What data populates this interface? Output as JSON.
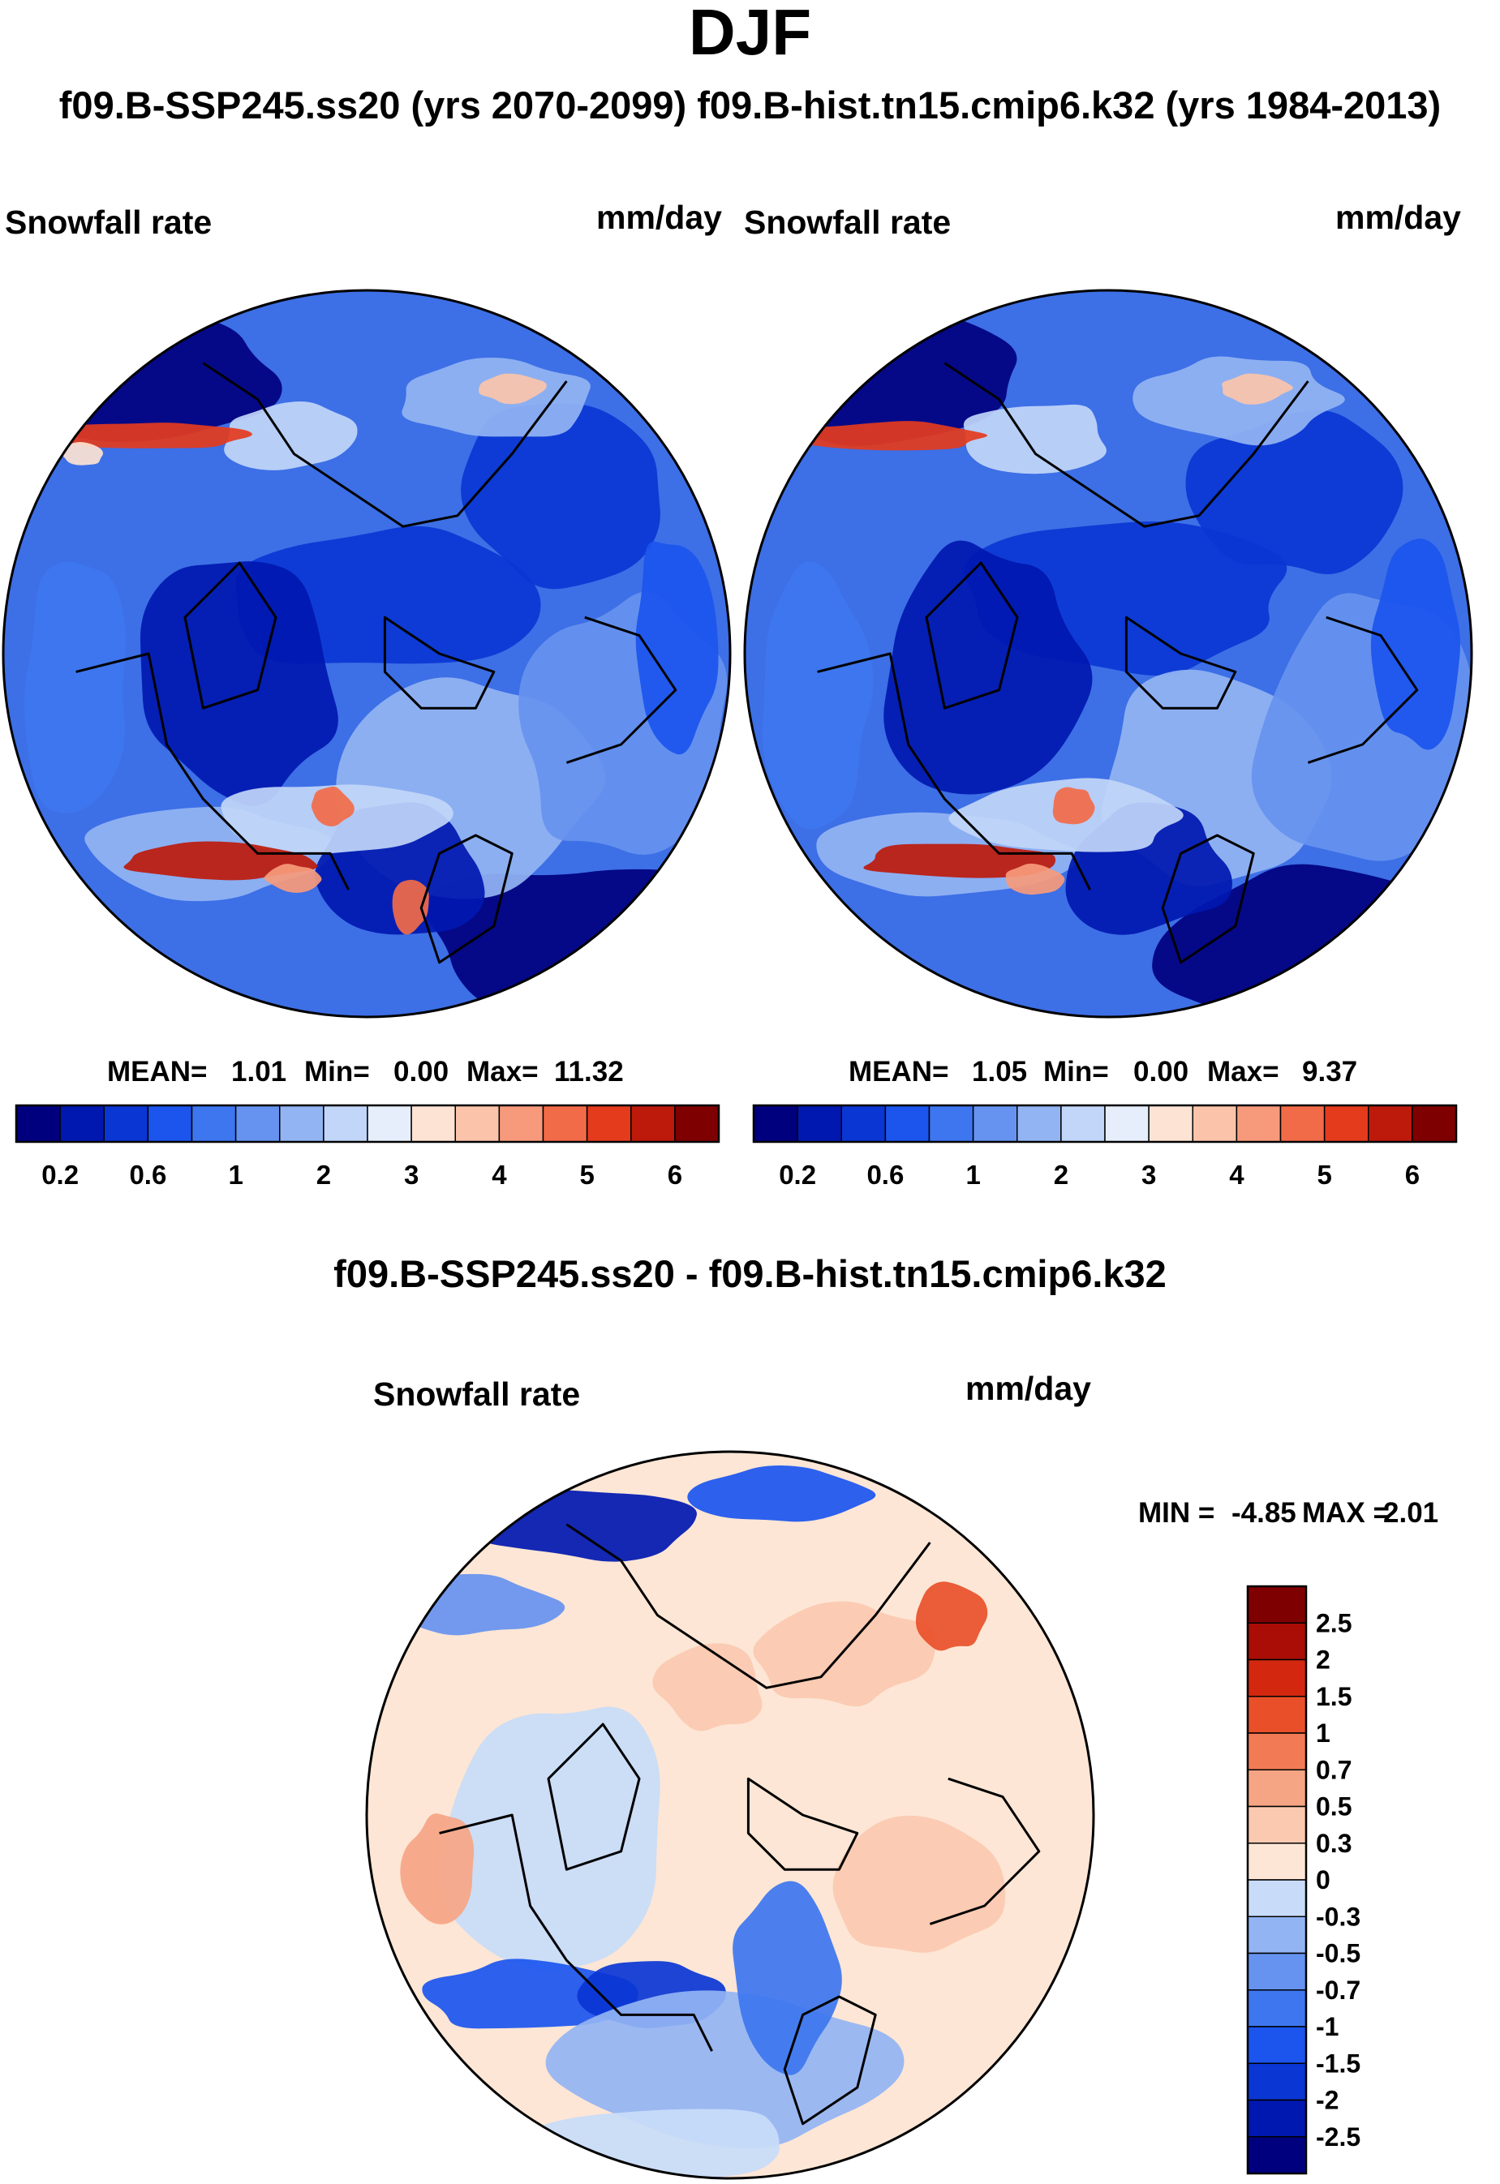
{
  "season": "DJF",
  "subtitle": "f09.B-SSP245.ss20 (yrs 2070-2099)  f09.B-hist.tn15.cmip6.k32 (yrs 1984-2013)",
  "diff_title": "f09.B-SSP245.ss20 - f09.B-hist.tn15.cmip6.k32",
  "chart_data": [
    {
      "type": "heatmap",
      "projection": "north-polar-stereographic",
      "case": "f09.B-SSP245.ss20",
      "years": "2070-2099",
      "variable": "Snowfall rate",
      "units": "mm/day",
      "stats": {
        "mean_label": "MEAN=",
        "mean": "1.01",
        "min_label": "Min=",
        "min": "0.00",
        "max_label": "Max=",
        "max": "11.32"
      },
      "levels": [
        0.2,
        0.4,
        0.6,
        0.8,
        1,
        1.5,
        2,
        2.5,
        3,
        3.5,
        4,
        4.5,
        5,
        5.5,
        6
      ],
      "colorbar_labels": [
        "0.2",
        "0.6",
        "1",
        "2",
        "3",
        "4",
        "5",
        "6"
      ]
    },
    {
      "type": "heatmap",
      "projection": "north-polar-stereographic",
      "case": "f09.B-hist.tn15.cmip6.k32",
      "years": "1984-2013",
      "variable": "Snowfall rate",
      "units": "mm/day",
      "stats": {
        "mean_label": "MEAN=",
        "mean": "1.05",
        "min_label": "Min=",
        "min": "0.00",
        "max_label": "Max=",
        "max": "9.37"
      },
      "levels": [
        0.2,
        0.4,
        0.6,
        0.8,
        1,
        1.5,
        2,
        2.5,
        3,
        3.5,
        4,
        4.5,
        5,
        5.5,
        6
      ],
      "colorbar_labels": [
        "0.2",
        "0.6",
        "1",
        "2",
        "3",
        "4",
        "5",
        "6"
      ]
    },
    {
      "type": "heatmap",
      "projection": "north-polar-stereographic",
      "case": "f09.B-SSP245.ss20 - f09.B-hist.tn15.cmip6.k32",
      "variable": "Snowfall rate",
      "units": "mm/day",
      "stats": {
        "min_label": "MIN =",
        "min": "-4.85",
        "max_label": "MAX =",
        "max": "2.01"
      },
      "levels": [
        -2.5,
        -2,
        -1.5,
        -1,
        -0.7,
        -0.5,
        -0.3,
        0,
        0.3,
        0.5,
        0.7,
        1,
        1.5,
        2,
        2.5
      ],
      "colorbar_labels": [
        "2.5",
        "2",
        "1.5",
        "1",
        "0.7",
        "0.5",
        "0.3",
        "0",
        "-0.3",
        "-0.5",
        "-0.7",
        "-1",
        "-1.5",
        "-2",
        "-2.5"
      ]
    }
  ],
  "colors": {
    "seq": [
      "#00007f",
      "#0018b0",
      "#0a36d4",
      "#1b55ee",
      "#3d76ef",
      "#6693ef",
      "#93b4f3",
      "#c1d6f8",
      "#e6eefb",
      "#fde3d3",
      "#fbc4aa",
      "#f79a7b",
      "#f26b48",
      "#e43b1d",
      "#bd1a0c",
      "#7f0000"
    ],
    "div": [
      "#00007f",
      "#0018b0",
      "#0a36d4",
      "#1b55ee",
      "#3d76ef",
      "#6693ef",
      "#93b4f3",
      "#c8dcf9",
      "#fde6d5",
      "#fbc9b0",
      "#f6a584",
      "#f27b55",
      "#e9502a",
      "#d3280f",
      "#a90d06",
      "#7f0000"
    ],
    "map_base_seq": "#3d6fe6",
    "map_base_div": "#fde6d5"
  }
}
